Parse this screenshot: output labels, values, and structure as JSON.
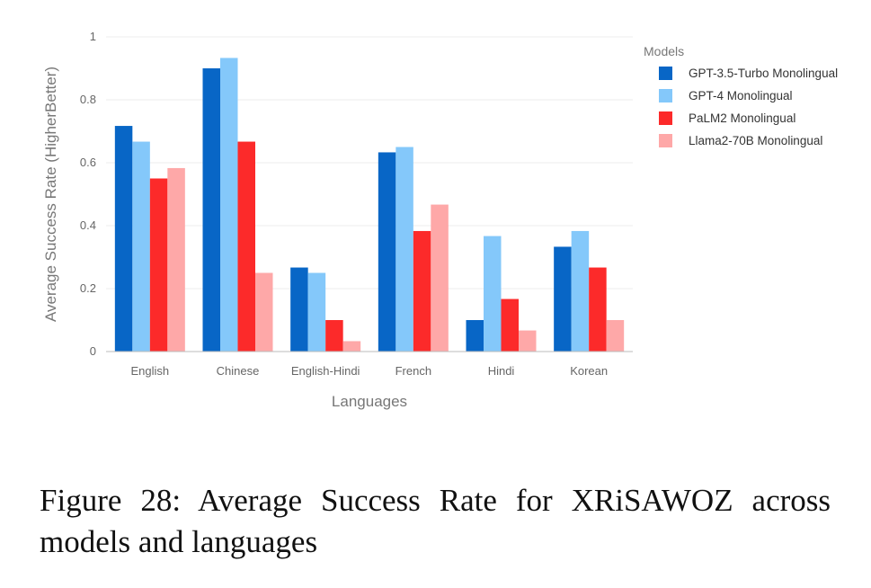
{
  "chart_data": {
    "type": "bar",
    "title": "",
    "xlabel": "Languages",
    "ylabel": "Average Success Rate (HigherBetter)",
    "ylim": [
      0,
      1
    ],
    "yticks": [
      0,
      0.2,
      0.4,
      0.6,
      0.8,
      1
    ],
    "ytick_labels": [
      "0",
      "0.2",
      "0.4",
      "0.6",
      "0.8",
      "1"
    ],
    "grid": true,
    "legend_title": "Models",
    "legend_position": "right",
    "categories": [
      "English",
      "Chinese",
      "English-Hindi",
      "French",
      "Hindi",
      "Korean"
    ],
    "series": [
      {
        "name": "GPT-3.5-Turbo Monolingual",
        "color": "#0866c6",
        "values": [
          0.717,
          0.9,
          0.267,
          0.633,
          0.1,
          0.333
        ]
      },
      {
        "name": "GPT-4 Monolingual",
        "color": "#84c8fa",
        "values": [
          0.667,
          0.933,
          0.25,
          0.65,
          0.367,
          0.383
        ]
      },
      {
        "name": "PaLM2 Monolingual",
        "color": "#fc2a2a",
        "values": [
          0.55,
          0.667,
          0.1,
          0.383,
          0.167,
          0.267
        ]
      },
      {
        "name": "Llama2-70B Monolingual",
        "color": "#fea8a8",
        "values": [
          0.583,
          0.25,
          0.033,
          0.467,
          0.067,
          0.1
        ]
      }
    ]
  },
  "caption": "Figure 28:  Average Success Rate for XRiSAWOZ across models and languages"
}
